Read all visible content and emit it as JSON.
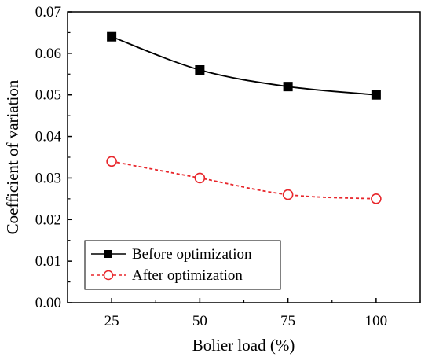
{
  "chart_data": {
    "type": "line",
    "xlabel": "Bolier load (%)",
    "ylabel": "Coefficient of variation",
    "x": [
      25,
      50,
      75,
      100
    ],
    "xlim": [
      12.5,
      112.5
    ],
    "ylim": [
      0,
      0.07
    ],
    "yticks": [
      "0.00",
      "0.01",
      "0.02",
      "0.03",
      "0.04",
      "0.05",
      "0.06",
      "0.07"
    ],
    "xticks": [
      "25",
      "50",
      "75",
      "100"
    ],
    "grid": false,
    "legend": "bottom-left",
    "series": [
      {
        "name": "Before optimization",
        "values": [
          0.064,
          0.056,
          0.052,
          0.05
        ],
        "color": "#000000",
        "marker": "filled-square",
        "line": "solid"
      },
      {
        "name": "After optimization",
        "values": [
          0.034,
          0.03,
          0.026,
          0.025
        ],
        "color": "#e8262b",
        "marker": "open-circle",
        "line": "dashed"
      }
    ]
  }
}
